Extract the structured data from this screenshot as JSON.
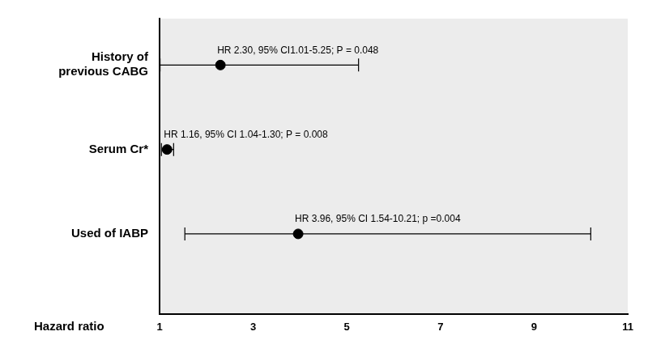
{
  "chart_data": {
    "type": "forest",
    "categories": [
      "History of previous CABG",
      "Serum Cr*",
      "Used of IABP"
    ],
    "values": [
      2.3,
      1.16,
      3.96
    ],
    "ci_lower": [
      1.01,
      1.04,
      1.54
    ],
    "ci_upper": [
      5.25,
      1.3,
      10.21
    ],
    "annotations": [
      "HR 2.30, 95% CI1.01-5.25; P = 0.048",
      "HR 1.16, 95% CI 1.04-1.30; P = 0.008",
      "HR 3.96, 95% CI 1.54-10.21; p =0.004"
    ],
    "x_label": "Hazard ratio",
    "xlim": [
      1,
      11
    ],
    "xticks": [
      1,
      3,
      5,
      7,
      9,
      11
    ],
    "color": "#000000",
    "orientation": "horizontal",
    "grid": false
  }
}
